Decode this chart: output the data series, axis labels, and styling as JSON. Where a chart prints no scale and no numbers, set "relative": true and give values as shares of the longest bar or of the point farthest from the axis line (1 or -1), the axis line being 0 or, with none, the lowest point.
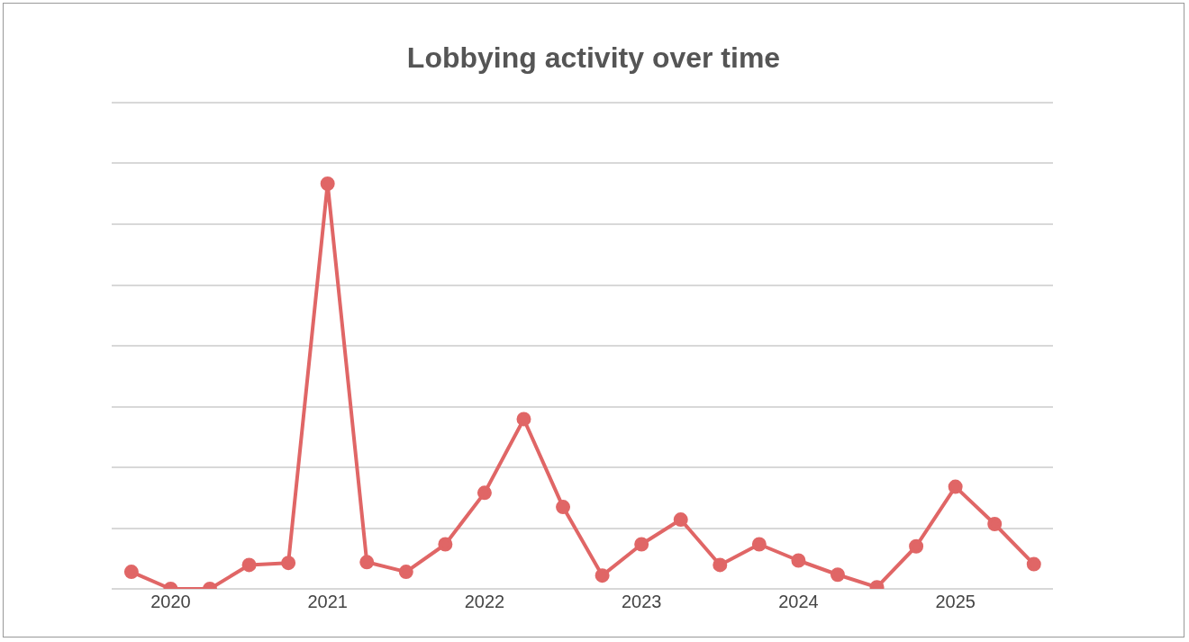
{
  "chart_data": {
    "type": "line",
    "title": "Lobbying activity over time",
    "relative": true,
    "grid": "y",
    "marker": "circle",
    "line_style": "solid",
    "legend": false,
    "x": [
      "2019-10",
      "2020-01",
      "2020-04",
      "2020-07",
      "2020-10",
      "2021-01",
      "2021-04",
      "2021-07",
      "2021-10",
      "2022-01",
      "2022-04",
      "2022-07",
      "2022-10",
      "2023-01",
      "2023-04",
      "2023-07",
      "2023-10",
      "2024-01",
      "2024-04",
      "2024-07",
      "2024-10",
      "2025-01",
      "2025-04",
      "2025-07"
    ],
    "xlim": [
      "2019-08-16",
      "2025-08-15"
    ],
    "xticks": [
      "2020",
      "2021",
      "2022",
      "2023",
      "2024",
      "2025"
    ],
    "series": [
      {
        "color": "#e06666",
        "values": [
          0.042,
          0,
          0,
          0.059,
          0.064,
          1,
          0.066,
          0.042,
          0.11,
          0.237,
          0.419,
          0.202,
          0.033,
          0.11,
          0.171,
          0.059,
          0.11,
          0.07,
          0.035,
          0.004,
          0.105,
          0.252,
          0.16,
          0.061
        ]
      }
    ]
  }
}
